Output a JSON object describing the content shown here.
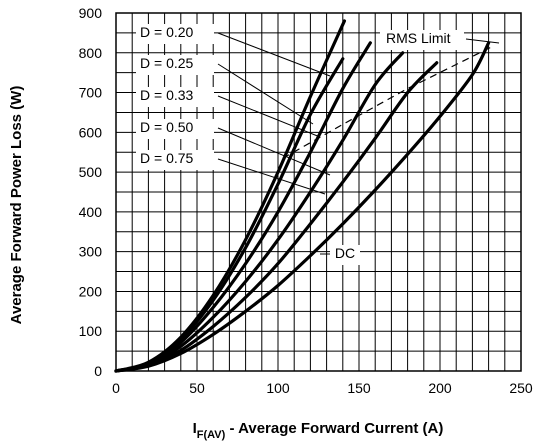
{
  "chart_data": {
    "type": "line",
    "ylabel": "Average Forward Power Loss (W)",
    "xlabel": {
      "main": "I",
      "sub": "F(AV)",
      "rest": " - Average Forward Current (A)"
    },
    "xlim": [
      0,
      250
    ],
    "ylim": [
      0,
      900
    ],
    "xticks": [
      0,
      50,
      100,
      150,
      200,
      250
    ],
    "yticks": [
      0,
      100,
      200,
      300,
      400,
      500,
      600,
      700,
      800,
      900
    ],
    "grid": true,
    "series": [
      {
        "name": "D = 0.20",
        "points": [
          [
            0,
            0
          ],
          [
            20,
            22
          ],
          [
            40,
            85
          ],
          [
            60,
            190
          ],
          [
            80,
            330
          ],
          [
            100,
            500
          ],
          [
            120,
            690
          ],
          [
            141,
            880
          ]
        ]
      },
      {
        "name": "D = 0.25",
        "points": [
          [
            0,
            0
          ],
          [
            20,
            20
          ],
          [
            40,
            80
          ],
          [
            60,
            178
          ],
          [
            80,
            310
          ],
          [
            100,
            470
          ],
          [
            120,
            645
          ],
          [
            140,
            785
          ]
        ]
      },
      {
        "name": "D = 0.33",
        "points": [
          [
            0,
            0
          ],
          [
            20,
            18
          ],
          [
            40,
            72
          ],
          [
            60,
            160
          ],
          [
            80,
            270
          ],
          [
            100,
            400
          ],
          [
            120,
            550
          ],
          [
            140,
            710
          ],
          [
            157,
            825
          ]
        ]
      },
      {
        "name": "D = 0.50",
        "points": [
          [
            0,
            0
          ],
          [
            20,
            16
          ],
          [
            40,
            62
          ],
          [
            60,
            135
          ],
          [
            80,
            225
          ],
          [
            100,
            330
          ],
          [
            120,
            450
          ],
          [
            140,
            580
          ],
          [
            160,
            720
          ],
          [
            177,
            800
          ]
        ]
      },
      {
        "name": "D = 0.75",
        "points": [
          [
            0,
            0
          ],
          [
            20,
            14
          ],
          [
            40,
            52
          ],
          [
            60,
            112
          ],
          [
            80,
            185
          ],
          [
            100,
            270
          ],
          [
            120,
            370
          ],
          [
            140,
            475
          ],
          [
            160,
            585
          ],
          [
            180,
            700
          ],
          [
            198,
            775
          ]
        ]
      },
      {
        "name": "DC",
        "points": [
          [
            0,
            0
          ],
          [
            20,
            12
          ],
          [
            40,
            44
          ],
          [
            60,
            92
          ],
          [
            80,
            150
          ],
          [
            100,
            215
          ],
          [
            120,
            290
          ],
          [
            140,
            370
          ],
          [
            160,
            455
          ],
          [
            180,
            545
          ],
          [
            200,
            640
          ],
          [
            220,
            745
          ],
          [
            230,
            825
          ]
        ]
      }
    ],
    "rms_limit": {
      "name": "RMS Limit",
      "points": [
        [
          103,
          535
        ],
        [
          140,
          620
        ],
        [
          180,
          710
        ],
        [
          232,
          815
        ]
      ]
    },
    "annotations": [
      {
        "text": "D = 0.20",
        "target_series": "D = 0.20"
      },
      {
        "text": "D = 0.25",
        "target_series": "D = 0.25"
      },
      {
        "text": "D = 0.33",
        "target_series": "D = 0.33"
      },
      {
        "text": "D = 0.50",
        "target_series": "D = 0.50"
      },
      {
        "text": "D = 0.75",
        "target_series": "D = 0.75"
      },
      {
        "text": "DC",
        "target_series": "DC"
      },
      {
        "text": "RMS Limit",
        "target_series": "RMS Limit"
      }
    ]
  }
}
